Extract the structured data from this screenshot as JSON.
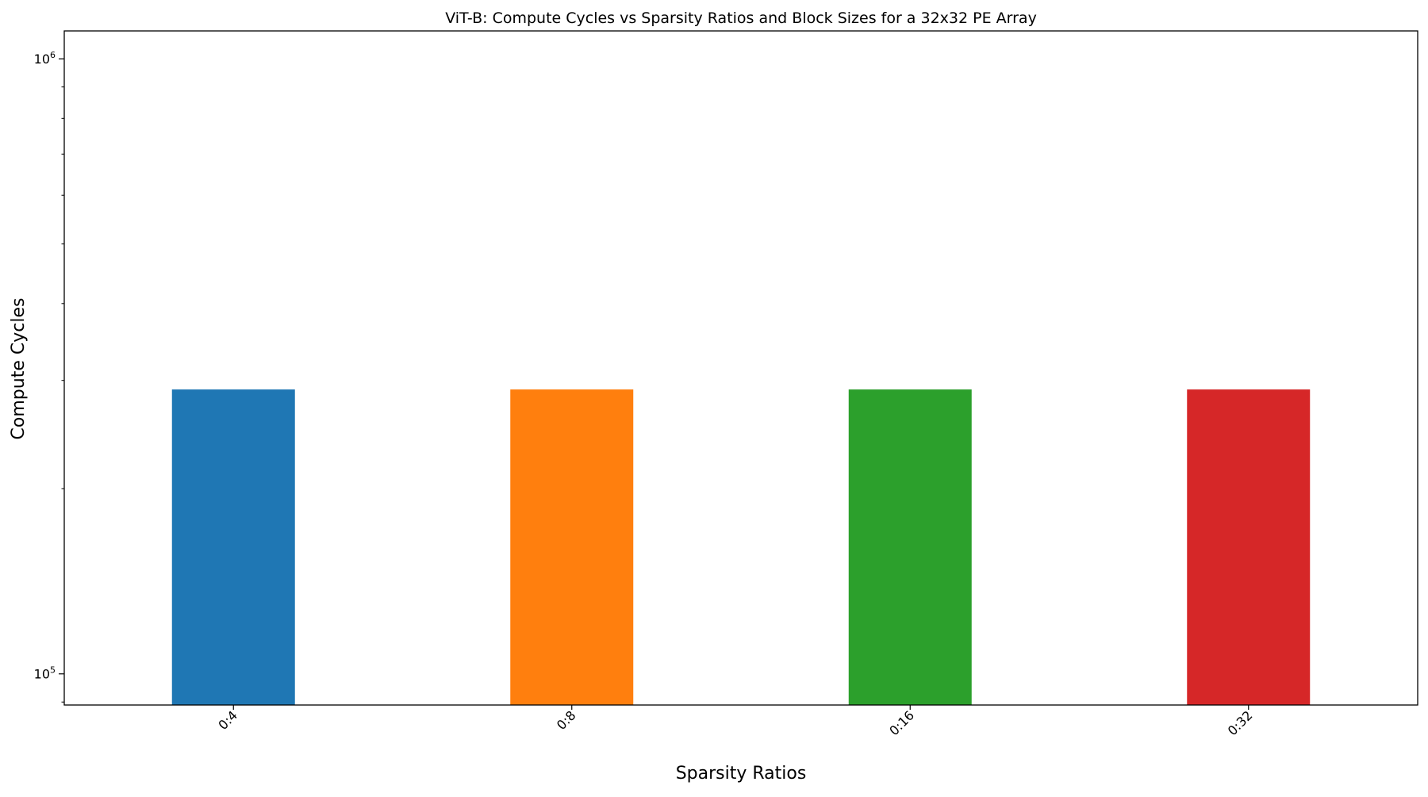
{
  "chart_data": {
    "type": "bar",
    "title": "ViT-B: Compute Cycles vs Sparsity Ratios and Block Sizes for a 32x32 PE Array",
    "xlabel": "Sparsity Ratios",
    "ylabel": "Compute Cycles",
    "categories": [
      "0:4",
      "0:8",
      "0:16",
      "0:32"
    ],
    "values": [
      290000,
      290000,
      290000,
      290000
    ],
    "bar_colors": [
      "#1f77b4",
      "#ff7f0e",
      "#2ca02c",
      "#d62728"
    ],
    "yscale": "log",
    "ylim": [
      89000,
      1110000
    ],
    "yticks": [
      {
        "value": 100000,
        "base": "10",
        "exp": "5"
      },
      {
        "value": 1000000,
        "base": "10",
        "exp": "6"
      }
    ],
    "yminor_ticks": [
      90000,
      200000,
      300000,
      400000,
      500000,
      600000,
      700000,
      800000,
      900000
    ],
    "grid": false,
    "legend": "none"
  }
}
